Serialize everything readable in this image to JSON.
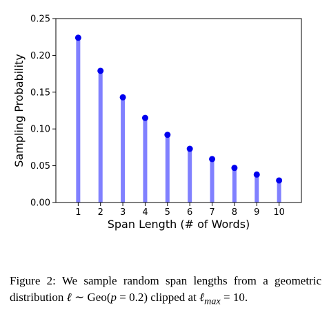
{
  "chart_data": {
    "type": "stem",
    "xlabel": "Span Length (# of Words)",
    "ylabel": "Sampling Probability",
    "x": [
      1,
      2,
      3,
      4,
      5,
      6,
      7,
      8,
      9,
      10
    ],
    "values": [
      0.224,
      0.179,
      0.143,
      0.115,
      0.092,
      0.073,
      0.059,
      0.047,
      0.038,
      0.03
    ],
    "ylim": [
      0,
      0.25
    ],
    "xlim": [
      0,
      11
    ],
    "yticks": [
      "0.00",
      "0.05",
      "0.10",
      "0.15",
      "0.20",
      "0.25"
    ],
    "xticks": [
      "1",
      "2",
      "3",
      "4",
      "5",
      "6",
      "7",
      "8",
      "9",
      "10"
    ],
    "grid": false,
    "colors": {
      "stem": "#8080ff",
      "marker": "#0000ee"
    }
  },
  "caption": {
    "prefix": "Figure 2: We sample random span lengths from a geometric distribution",
    "dist_symbol": "ℓ",
    "tilde": "∼",
    "dist_name": "Geo",
    "param": "p",
    "equals": "=",
    "param_value": "0.2",
    "middle": "clipped at",
    "max_symbol": "ℓ",
    "max_sub": "max",
    "max_value": "10",
    "end": "."
  }
}
